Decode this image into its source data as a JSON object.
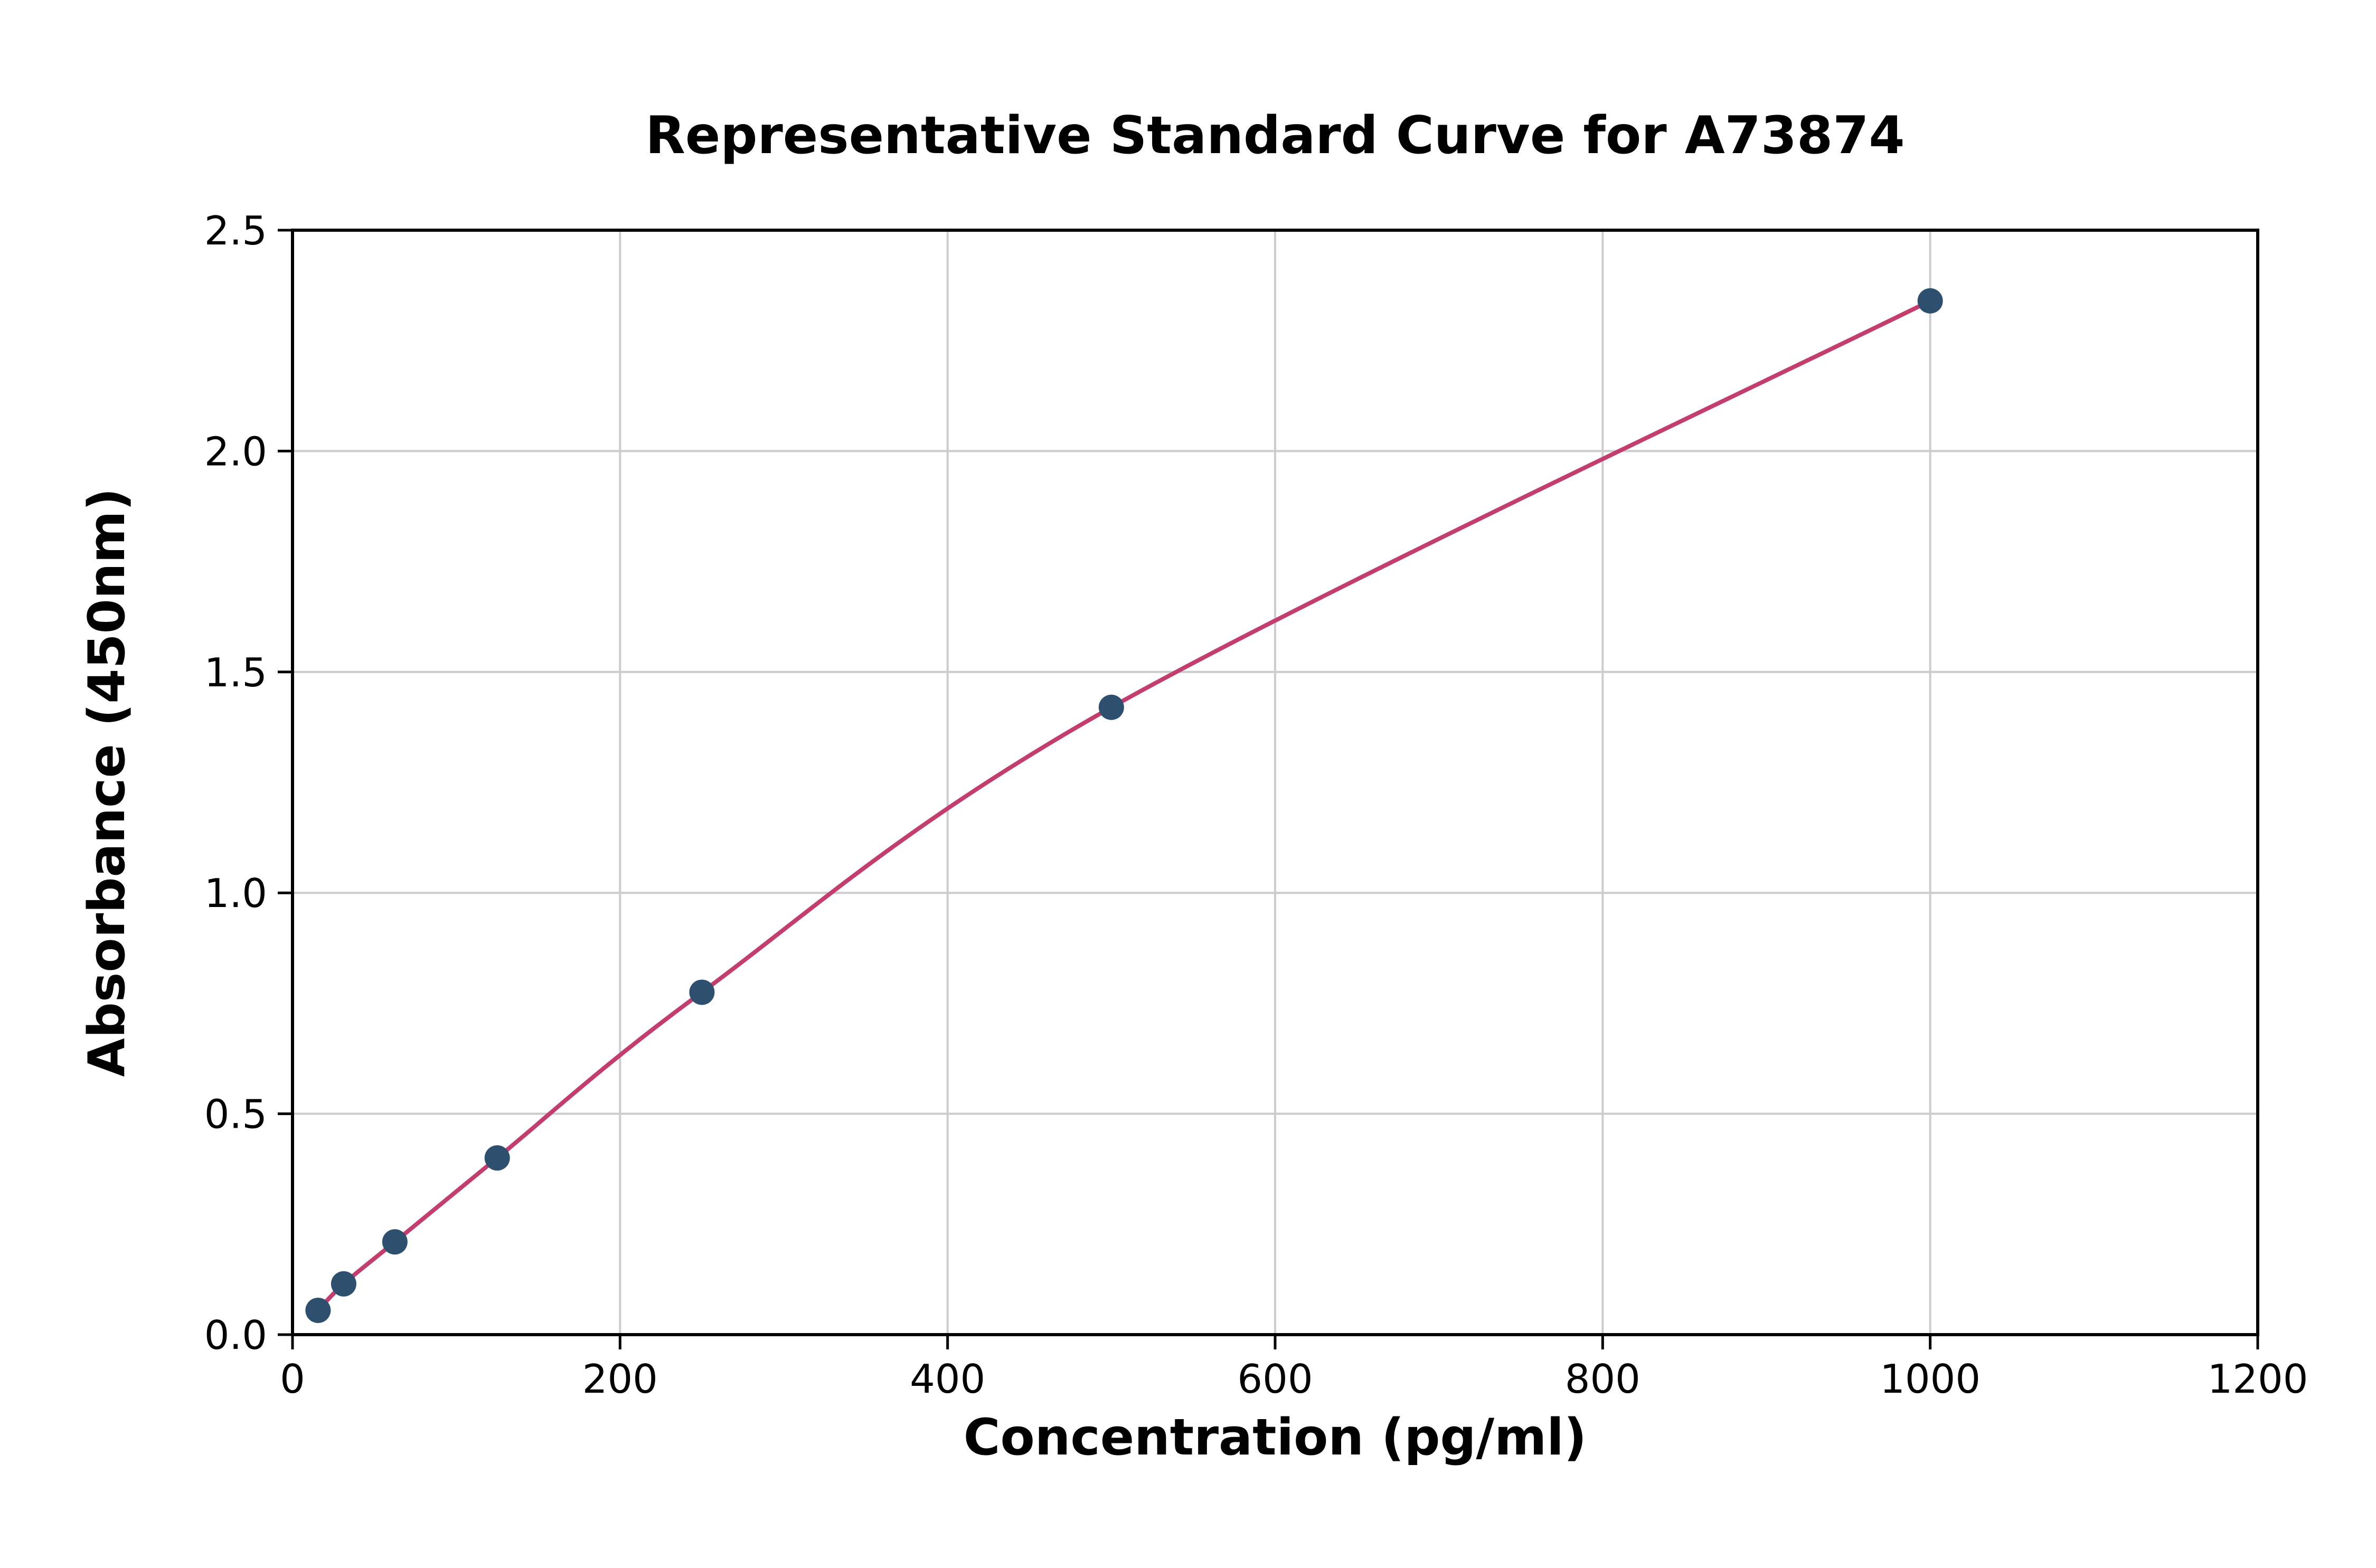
{
  "chart_data": {
    "type": "scatter",
    "title": "Representative Standard Curve for A73874",
    "xlabel": "Concentration (pg/ml)",
    "ylabel": "Absorbance (450nm)",
    "xlim": [
      0,
      1200
    ],
    "ylim": [
      0,
      2.5
    ],
    "xticks": [
      0,
      200,
      400,
      600,
      800,
      1000,
      1200
    ],
    "xtick_labels": [
      "0",
      "200",
      "400",
      "600",
      "800",
      "1000",
      "1200"
    ],
    "yticks": [
      0,
      0.5,
      1.0,
      1.5,
      2.0,
      2.5
    ],
    "ytick_labels": [
      "0.0",
      "0.5",
      "1.0",
      "1.5",
      "2.0",
      "2.5"
    ],
    "grid": true,
    "points": [
      {
        "x": 15.6,
        "y": 0.055
      },
      {
        "x": 31.25,
        "y": 0.115
      },
      {
        "x": 62.5,
        "y": 0.21
      },
      {
        "x": 125,
        "y": 0.4
      },
      {
        "x": 250,
        "y": 0.775
      },
      {
        "x": 500,
        "y": 1.42
      },
      {
        "x": 1000,
        "y": 2.34
      }
    ],
    "legend": null,
    "colors": {
      "curve": "#c13e6e",
      "points": "#2e506e",
      "grid": "#cccccc",
      "spine": "#000000",
      "background": "#ffffff"
    }
  }
}
